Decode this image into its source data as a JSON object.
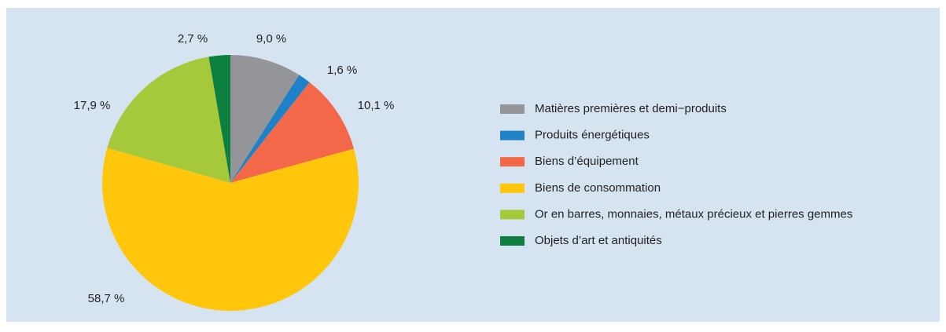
{
  "chart_data": {
    "type": "pie",
    "categories": [
      "Matières premières et demi−produits",
      "Produits énergétiques",
      "Biens d’équipement",
      "Biens de consommation",
      "Or en barres, monnaies, métaux précieux et pierres gemmes",
      "Objets d’art et antiquités"
    ],
    "values": [
      9.0,
      1.6,
      10.1,
      58.7,
      17.9,
      2.7
    ],
    "value_labels": [
      "9,0 %",
      "1,6 %",
      "10,1 %",
      "58,7 %",
      "17,9 %",
      "2,7 %"
    ],
    "colors": [
      "#939598",
      "#1f82c8",
      "#f26849",
      "#ffc60b",
      "#a5c93a",
      "#0d8040"
    ],
    "legend": "right"
  }
}
